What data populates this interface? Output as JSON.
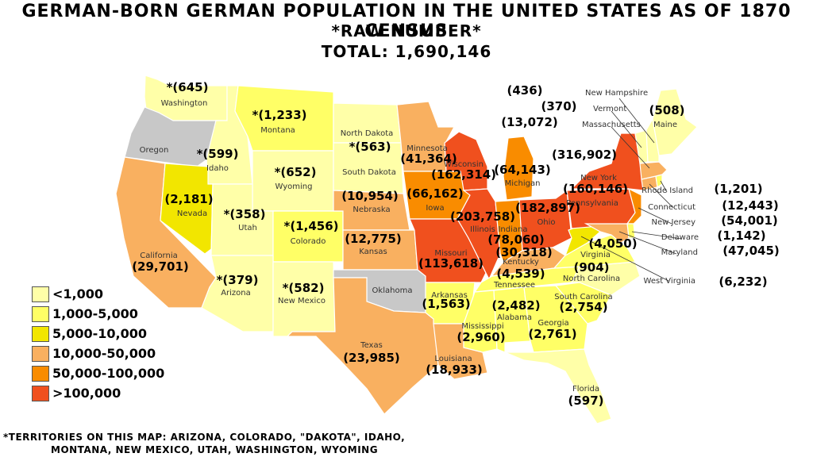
{
  "title": {
    "line1": "German-born German Population in the United States as of 1870 Census",
    "line2": "*Raw Number*",
    "line3": "Total: 1,690,146"
  },
  "colors": {
    "lt1000": "#ffffa8",
    "r1000_5000": "#ffff66",
    "r5000_10000": "#f2e600",
    "r10000_50000": "#f9b060",
    "r50000_100000": "#f98c00",
    "gt100000": "#f0501e",
    "no_data": "#c8c8c8"
  },
  "legend": [
    {
      "label": "<1,000",
      "color": "#ffffa8"
    },
    {
      "label": "1,000-5,000",
      "color": "#ffff66"
    },
    {
      "label": "5,000-10,000",
      "color": "#f2e600"
    },
    {
      "label": "10,000-50,000",
      "color": "#f9b060"
    },
    {
      "label": "50,000-100,000",
      "color": "#f98c00"
    },
    {
      "label": ">100,000",
      "color": "#f0501e"
    }
  ],
  "states": {
    "washington": {
      "name": "Washington",
      "value": "*(645)"
    },
    "oregon": {
      "name": "Oregon",
      "value": ""
    },
    "idaho": {
      "name": "Idaho",
      "value": "*(599)"
    },
    "montana": {
      "name": "Montana",
      "value": "*(1,233)"
    },
    "north_dakota": {
      "name": "North Dakota",
      "value": ""
    },
    "south_dakota": {
      "name": "South Dakota",
      "value": "*(563)"
    },
    "wyoming": {
      "name": "Wyoming",
      "value": "*(652)"
    },
    "california": {
      "name": "California",
      "value": "(29,701)"
    },
    "nevada": {
      "name": "Nevada",
      "value": "(2,181)"
    },
    "utah": {
      "name": "Utah",
      "value": "*(358)"
    },
    "colorado": {
      "name": "Colorado",
      "value": "*(1,456)"
    },
    "arizona": {
      "name": "Arizona",
      "value": "*(379)"
    },
    "new_mexico": {
      "name": "New Mexico",
      "value": "*(582)"
    },
    "minnesota": {
      "name": "Minnesota",
      "value": "(41,364)"
    },
    "nebraska": {
      "name": "Nebraska",
      "value": "(10,954)"
    },
    "kansas": {
      "name": "Kansas",
      "value": "(12,775)"
    },
    "oklahoma": {
      "name": "Oklahoma",
      "value": ""
    },
    "texas": {
      "name": "Texas",
      "value": "(23,985)"
    },
    "iowa": {
      "name": "Iowa",
      "value": "(66,162)"
    },
    "missouri": {
      "name": "Missouri",
      "value": "(113,618)"
    },
    "arkansas": {
      "name": "Arkansas",
      "value": "(1,563)"
    },
    "louisiana": {
      "name": "Louisiana",
      "value": "(18,933)"
    },
    "wisconsin": {
      "name": "Wisconsin",
      "value": "(162,314)"
    },
    "illinois": {
      "name": "Illinois",
      "value": "(203,758)"
    },
    "michigan": {
      "name": "Michigan",
      "value": "(64,143)"
    },
    "indiana": {
      "name": "Indiana",
      "value": "(78,060)"
    },
    "ohio": {
      "name": "Ohio",
      "value": "(182,897)"
    },
    "kentucky": {
      "name": "Kentucky",
      "value": "(30,318)"
    },
    "tennessee": {
      "name": "Tennessee",
      "value": "(4,539)"
    },
    "mississippi": {
      "name": "Mississippi",
      "value": "(2,960)"
    },
    "alabama": {
      "name": "Alabama",
      "value": "(2,482)"
    },
    "georgia": {
      "name": "Georgia",
      "value": "(2,761)"
    },
    "florida": {
      "name": "Florida",
      "value": "(597)"
    },
    "south_carolina": {
      "name": "South Carolina",
      "value": "(2,754)"
    },
    "north_carolina": {
      "name": "North Carolina",
      "value": "(904)"
    },
    "virginia": {
      "name": "Virginia",
      "value": "(4,050)"
    },
    "west_virginia": {
      "name": "West Virginia",
      "value": "(6,232)"
    },
    "pennsylvania": {
      "name": "Pennsylvania",
      "value": "(160,146)"
    },
    "new_york": {
      "name": "New York",
      "value": "(316,902)"
    },
    "maine": {
      "name": "Maine",
      "value": "(508)"
    },
    "new_hampshire": {
      "name": "New Hampshire",
      "value": "(436)"
    },
    "vermont": {
      "name": "Vermont",
      "value": "(370)"
    },
    "massachusetts": {
      "name": "Massachusetts",
      "value": "(13,072)"
    },
    "rhode_island": {
      "name": "Rhode Island",
      "value": "(1,201)"
    },
    "connecticut": {
      "name": "Connecticut",
      "value": "(12,443)"
    },
    "new_jersey": {
      "name": "New Jersey",
      "value": "(54,001)"
    },
    "delaware": {
      "name": "Delaware",
      "value": "(1,142)"
    },
    "maryland": {
      "name": "Maryland",
      "value": "(47,045)"
    }
  },
  "footnote": {
    "line1": "*Territories on this map:  Arizona, Colorado, \"Dakota\", Idaho,",
    "line2": "Montana, New Mexico, Utah, Washington, Wyoming"
  }
}
